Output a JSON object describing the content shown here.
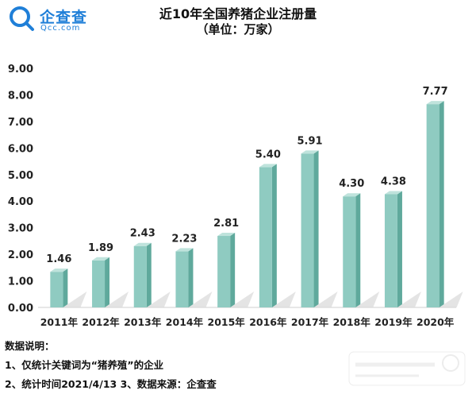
{
  "logo": {
    "name": "企查查",
    "domain": "Qcc.com"
  },
  "colors": {
    "bar_front": "#8fcbc1",
    "bar_side": "#5fa99c",
    "bar_top": "#bfe3dc",
    "shadow": "#d9d9d9",
    "brand": "#1f7fd8"
  },
  "chart_data": {
    "type": "bar",
    "title": "近10年全国养猪企业注册量",
    "subtitle": "（单位：万家）",
    "categories": [
      "2011年",
      "2012年",
      "2013年",
      "2014年",
      "2015年",
      "2016年",
      "2017年",
      "2018年",
      "2019年",
      "2020年"
    ],
    "values": [
      1.46,
      1.89,
      2.43,
      2.23,
      2.81,
      5.4,
      5.91,
      4.3,
      4.38,
      7.77
    ],
    "value_labels": [
      "1.46",
      "1.89",
      "2.43",
      "2.23",
      "2.81",
      "5.40",
      "5.91",
      "4.30",
      "4.38",
      "7.77"
    ],
    "ylim": [
      0,
      9
    ],
    "yticks": [
      "0.00",
      "1.00",
      "2.00",
      "3.00",
      "4.00",
      "5.00",
      "6.00",
      "7.00",
      "8.00",
      "9.00"
    ],
    "grid": false,
    "legend": false
  },
  "notes": {
    "heading": "数据说明：",
    "line1": "1、仅统计关键词为“猪养殖”的企业",
    "line2": "2、统计时间2021/4/13    3、数据来源：企查查"
  }
}
